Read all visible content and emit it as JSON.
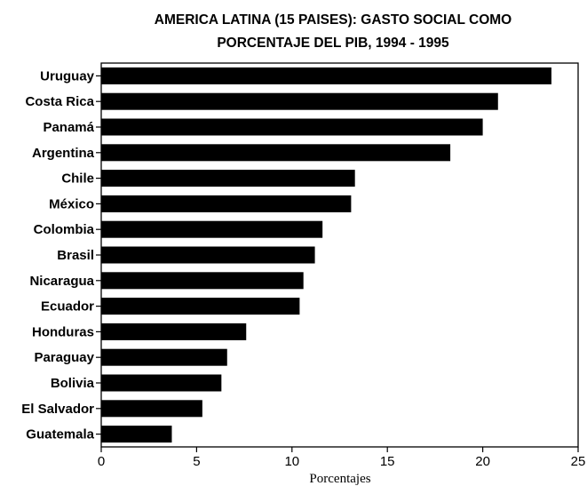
{
  "chart_data": {
    "type": "bar",
    "orientation": "horizontal",
    "title_lines": [
      "AMERICA LATINA (15 PAISES): GASTO SOCIAL COMO",
      "PORCENTAJE DEL PIB, 1994 - 1995"
    ],
    "xlabel": "Porcentajes",
    "ylabel": "",
    "xlim": [
      0,
      25
    ],
    "xticks": [
      0,
      5,
      10,
      15,
      20,
      25
    ],
    "grid": false,
    "legend": "none",
    "bar_color": "#000000",
    "categories": [
      "Uruguay",
      "Costa Rica",
      "Panamá",
      "Argentina",
      "Chile",
      "México",
      "Colombia",
      "Brasil",
      "Nicaragua",
      "Ecuador",
      "Honduras",
      "Paraguay",
      "Bolivia",
      "El Salvador",
      "Guatemala"
    ],
    "values": [
      23.6,
      20.8,
      20.0,
      18.3,
      13.3,
      13.1,
      11.6,
      11.2,
      10.6,
      10.4,
      7.6,
      6.6,
      6.3,
      5.3,
      3.7
    ]
  }
}
